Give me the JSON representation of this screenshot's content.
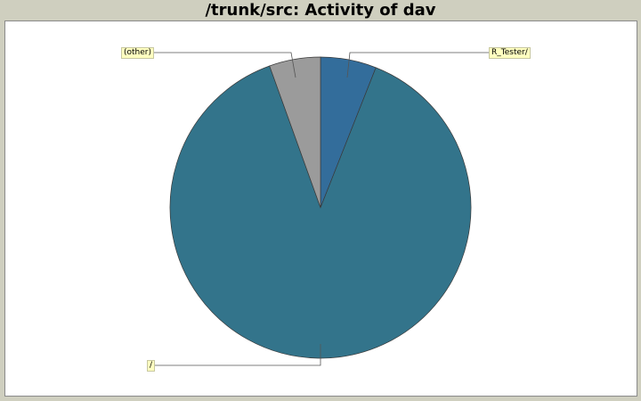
{
  "chart_data": {
    "type": "pie",
    "title": "/trunk/src: Activity of dav",
    "slices": [
      {
        "label": "R_Tester/",
        "value": 6,
        "color": "#336d9b"
      },
      {
        "label": "/",
        "value": 88.5,
        "color": "#33748b"
      },
      {
        "label": "(other)",
        "value": 5.5,
        "color": "#9b9b9b"
      }
    ],
    "legend": "none"
  }
}
